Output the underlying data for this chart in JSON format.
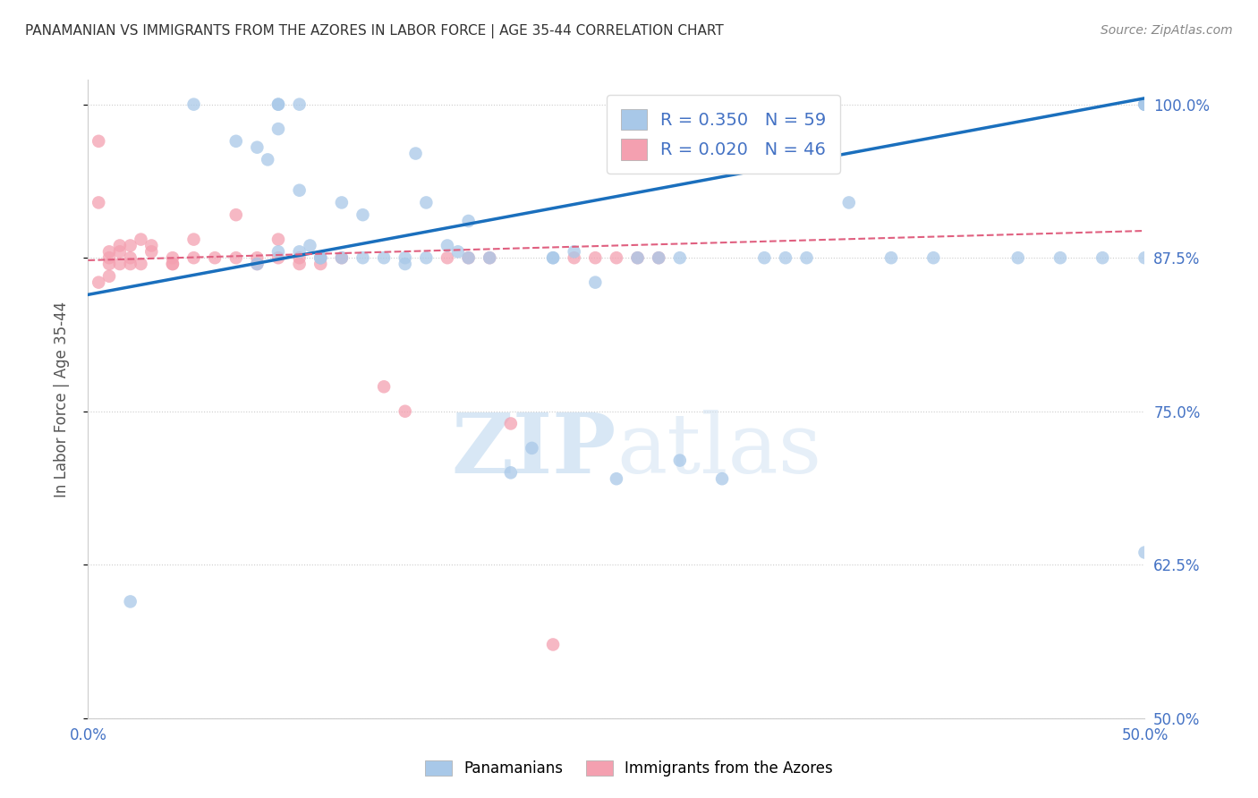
{
  "title": "PANAMANIAN VS IMMIGRANTS FROM THE AZORES IN LABOR FORCE | AGE 35-44 CORRELATION CHART",
  "source": "Source: ZipAtlas.com",
  "ylabel": "In Labor Force | Age 35-44",
  "xlim": [
    0.0,
    0.5
  ],
  "ylim": [
    0.5,
    1.02
  ],
  "yticks": [
    0.5,
    0.625,
    0.75,
    0.875,
    1.0
  ],
  "ytick_labels": [
    "50.0%",
    "62.5%",
    "75.0%",
    "87.5%",
    "100.0%"
  ],
  "xticks": [
    0.0,
    0.1,
    0.2,
    0.3,
    0.4,
    0.5
  ],
  "xtick_labels": [
    "0.0%",
    "",
    "",
    "",
    "",
    "50.0%"
  ],
  "legend_r1": "R = 0.350",
  "legend_n1": "N = 59",
  "legend_r2": "R = 0.020",
  "legend_n2": "N = 46",
  "blue_color": "#a8c8e8",
  "pink_color": "#f4a0b0",
  "trend_blue": "#1a6fbd",
  "trend_pink": "#e06080",
  "title_color": "#333333",
  "axis_label_color": "#555555",
  "tick_color": "#4472c4",
  "watermark_zip": "ZIP",
  "watermark_atlas": "atlas",
  "blue_scatter_x": [
    0.02,
    0.05,
    0.07,
    0.08,
    0.085,
    0.09,
    0.09,
    0.09,
    0.1,
    0.105,
    0.11,
    0.12,
    0.13,
    0.14,
    0.15,
    0.155,
    0.16,
    0.17,
    0.175,
    0.18,
    0.19,
    0.2,
    0.21,
    0.22,
    0.23,
    0.24,
    0.25,
    0.26,
    0.27,
    0.28,
    0.3,
    0.32,
    0.34,
    0.36,
    0.38,
    0.4,
    0.46,
    0.48,
    0.5,
    0.5,
    0.5,
    0.5,
    0.5,
    0.5,
    0.5,
    0.08,
    0.09,
    0.1,
    0.1,
    0.11,
    0.12,
    0.13,
    0.15,
    0.16,
    0.18,
    0.22,
    0.28,
    0.33,
    0.44
  ],
  "blue_scatter_y": [
    0.595,
    1.0,
    0.97,
    0.965,
    0.955,
    1.0,
    1.0,
    0.98,
    1.0,
    0.885,
    0.875,
    0.92,
    0.91,
    0.875,
    0.875,
    0.96,
    0.92,
    0.885,
    0.88,
    0.905,
    0.875,
    0.7,
    0.72,
    0.875,
    0.88,
    0.855,
    0.695,
    0.875,
    0.875,
    0.71,
    0.695,
    0.875,
    0.875,
    0.92,
    0.875,
    0.875,
    0.875,
    0.875,
    1.0,
    1.0,
    1.0,
    1.0,
    1.0,
    0.635,
    0.875,
    0.87,
    0.88,
    0.93,
    0.88,
    0.875,
    0.875,
    0.875,
    0.87,
    0.875,
    0.875,
    0.875,
    0.875,
    0.875,
    0.875
  ],
  "pink_scatter_x": [
    0.005,
    0.005,
    0.005,
    0.01,
    0.01,
    0.01,
    0.01,
    0.015,
    0.015,
    0.015,
    0.02,
    0.02,
    0.02,
    0.025,
    0.025,
    0.03,
    0.03,
    0.04,
    0.04,
    0.04,
    0.05,
    0.05,
    0.06,
    0.07,
    0.07,
    0.08,
    0.08,
    0.09,
    0.09,
    0.1,
    0.1,
    0.11,
    0.11,
    0.12,
    0.14,
    0.15,
    0.17,
    0.18,
    0.19,
    0.2,
    0.22,
    0.23,
    0.24,
    0.25,
    0.26,
    0.27
  ],
  "pink_scatter_y": [
    0.92,
    0.97,
    0.855,
    0.88,
    0.875,
    0.87,
    0.86,
    0.885,
    0.88,
    0.87,
    0.885,
    0.875,
    0.87,
    0.89,
    0.87,
    0.885,
    0.88,
    0.875,
    0.87,
    0.87,
    0.89,
    0.875,
    0.875,
    0.91,
    0.875,
    0.875,
    0.87,
    0.89,
    0.875,
    0.875,
    0.87,
    0.87,
    0.875,
    0.875,
    0.77,
    0.75,
    0.875,
    0.875,
    0.875,
    0.74,
    0.56,
    0.875,
    0.875,
    0.875,
    0.875,
    0.875
  ],
  "blue_trend_x": [
    0.0,
    0.5
  ],
  "blue_trend_y": [
    0.845,
    1.005
  ],
  "pink_trend_x": [
    0.0,
    0.5
  ],
  "pink_trend_y": [
    0.873,
    0.897
  ]
}
